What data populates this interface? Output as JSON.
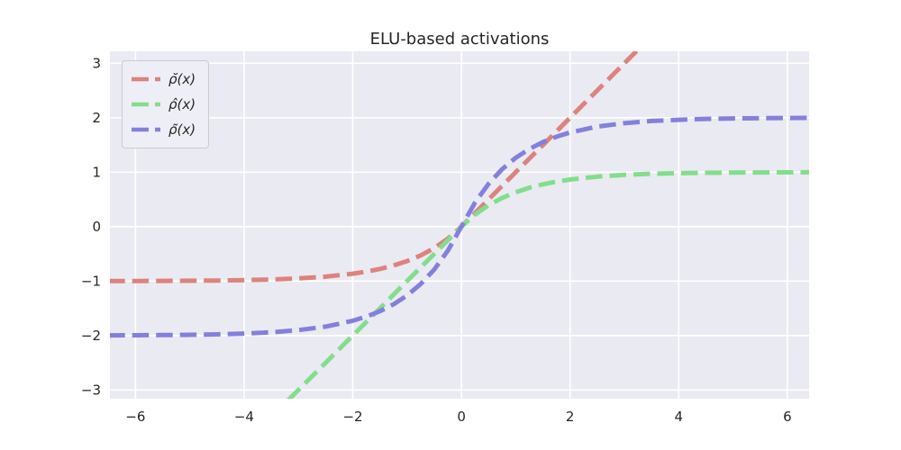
{
  "chart_data": {
    "type": "line",
    "title": "ELU-based activations",
    "xlabel": "",
    "ylabel": "",
    "xlim": [
      -6.47,
      6.4
    ],
    "ylim": [
      -3.16,
      3.22
    ],
    "grid": true,
    "legend_position": "upper left",
    "styles": {
      "plot_bg": "#eaeaf2",
      "grid_color": "#ffffff",
      "text_color": "#262626",
      "tick_font_size": 15,
      "line_width": 5,
      "dash_pattern": "18.5 8"
    },
    "xticks": {
      "values": [
        -6,
        -4,
        -2,
        0,
        2,
        4,
        6
      ],
      "labels": [
        "−6",
        "−4",
        "−2",
        "0",
        "2",
        "4",
        "6"
      ]
    },
    "yticks": {
      "values": [
        -3,
        -2,
        -1,
        0,
        1,
        2,
        3
      ],
      "labels": [
        "−3",
        "−2",
        "−1",
        "0",
        "1",
        "2",
        "3"
      ]
    },
    "series": [
      {
        "name": "rho-breve",
        "label": "ρ̆(x)",
        "color": "#dd827e",
        "x": [
          -6.5,
          -6,
          -5.5,
          -5,
          -4.5,
          -4,
          -3.5,
          -3,
          -2.5,
          -2,
          -1.75,
          -1.5,
          -1.25,
          -1,
          -0.75,
          -0.5,
          -0.25,
          0,
          0.5,
          1,
          1.5,
          2,
          2.5,
          3,
          3.5
        ],
        "y": [
          -0.999,
          -0.998,
          -0.996,
          -0.993,
          -0.989,
          -0.982,
          -0.97,
          -0.95,
          -0.918,
          -0.865,
          -0.826,
          -0.777,
          -0.714,
          -0.632,
          -0.528,
          -0.393,
          -0.221,
          0,
          0.5,
          1,
          1.5,
          2,
          2.5,
          3,
          3.5
        ]
      },
      {
        "name": "rho-hat",
        "label": "ρ̂(x)",
        "color": "#82de8c",
        "x": [
          -3.5,
          -3,
          -2.5,
          -2,
          -1.5,
          -1,
          -0.5,
          0,
          0.25,
          0.5,
          0.75,
          1,
          1.25,
          1.5,
          1.75,
          2,
          2.5,
          3,
          3.5,
          4,
          4.5,
          5,
          5.5,
          6,
          6.5
        ],
        "y": [
          -3.5,
          -3,
          -2.5,
          -2,
          -1.5,
          -1,
          -0.5,
          0,
          0.221,
          0.393,
          0.528,
          0.632,
          0.714,
          0.777,
          0.826,
          0.865,
          0.918,
          0.95,
          0.97,
          0.982,
          0.989,
          0.993,
          0.996,
          0.997,
          0.999
        ]
      },
      {
        "name": "rho-tilde",
        "label": "ρ̃(x)",
        "color": "#8380dd",
        "x": [
          -6.5,
          -6,
          -5.5,
          -5,
          -4.5,
          -4,
          -3.5,
          -3,
          -2.5,
          -2,
          -1.75,
          -1.5,
          -1.25,
          -1,
          -0.75,
          -0.5,
          -0.25,
          0,
          0.25,
          0.5,
          0.75,
          1,
          1.25,
          1.5,
          1.75,
          2,
          2.5,
          3,
          3.5,
          4,
          4.5,
          5,
          5.5,
          6,
          6.5
        ],
        "y": [
          -1.997,
          -1.995,
          -1.992,
          -1.987,
          -1.978,
          -1.963,
          -1.94,
          -1.9,
          -1.836,
          -1.729,
          -1.652,
          -1.554,
          -1.427,
          -1.264,
          -1.055,
          -0.787,
          -0.442,
          0,
          0.442,
          0.787,
          1.055,
          1.264,
          1.427,
          1.554,
          1.652,
          1.729,
          1.836,
          1.9,
          1.94,
          1.963,
          1.978,
          1.987,
          1.992,
          1.995,
          1.997
        ]
      }
    ]
  }
}
